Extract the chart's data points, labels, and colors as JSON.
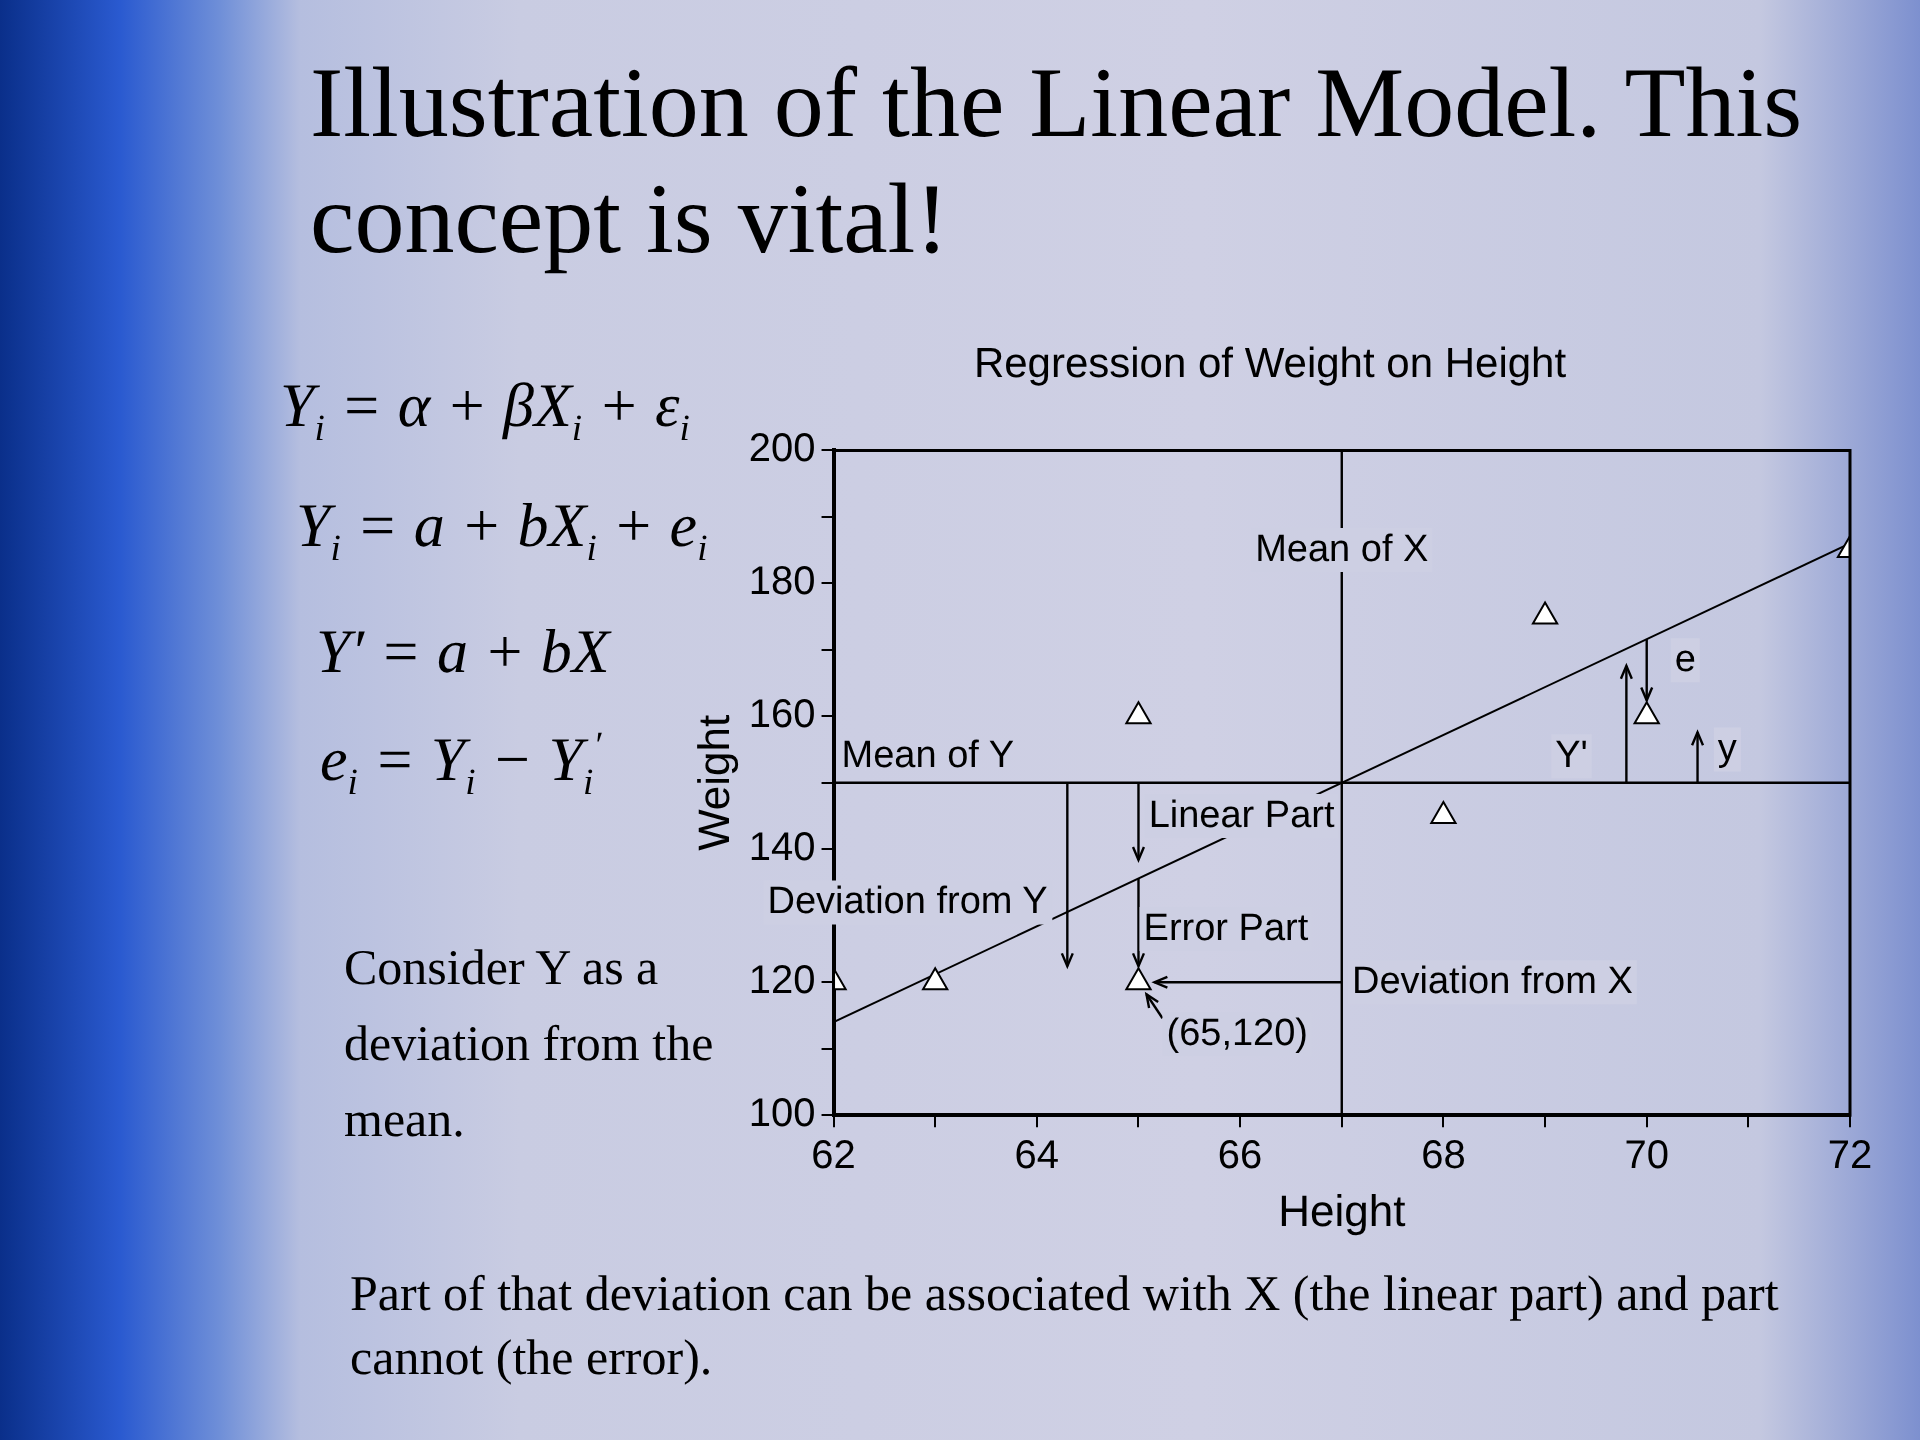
{
  "chart_data": {
    "type": "scatter",
    "title": "Illustration of the Linear Model. This concept is vital!",
    "subtitle": "Regression of Weight on Height",
    "xlabel": "Height",
    "ylabel": "Weight",
    "xlim": [
      62,
      72
    ],
    "xticks": [
      62,
      {
        "value": 63,
        "label": null
      },
      64,
      {
        "value": 65,
        "label": null
      },
      66,
      {
        "value": 67,
        "label": null
      },
      68,
      {
        "value": 69,
        "label": null
      },
      70,
      {
        "value": 71,
        "label": null
      },
      72
    ],
    "ylim": [
      100,
      200
    ],
    "yticks": [
      100,
      {
        "value": 110,
        "label": null
      },
      120,
      {
        "value": 130,
        "label": null
      },
      140,
      {
        "value": 150,
        "label": null
      },
      160,
      {
        "value": 170,
        "label": null
      },
      180,
      {
        "value": 190,
        "label": null
      },
      200
    ],
    "grid": false,
    "legend": false,
    "marker": "triangle",
    "series": [
      {
        "type": "scatter",
        "color": "#ffffff",
        "x": [
          62,
          63,
          65,
          65,
          68,
          69,
          70,
          72
        ],
        "values": [
          120,
          120,
          160,
          120,
          145,
          175,
          160,
          185
        ]
      },
      {
        "type": "line",
        "color": "#000000",
        "marker": "none",
        "x": [
          62,
          72
        ],
        "values": [
          114,
          186
        ]
      }
    ],
    "ref_lines": [
      {
        "axis": "x",
        "value": 67,
        "label": "Mean of X",
        "color": "#000000"
      },
      {
        "axis": "y",
        "value": 150,
        "label": "Mean of Y",
        "color": "#000000"
      }
    ],
    "annotations": [
      "Y$_{i}$ = α + βX$_{i}$ + ε$_{i}$",
      "Y$_{i}$ = a + bX$_{i}$ + e$_{i}$",
      "Y′ = a + bX",
      "e$_{i}$ = Y$_{i}$ − Y$_{i}$$^{′}$",
      "Consider Y as a deviation from the mean.",
      "Part of that deviation can be associated with X (the linear part) and part cannot (the error).",
      {
        "text": "(65,120)",
        "x": 65,
        "y": 120
      },
      {
        "text": "e",
        "x": 70,
        "y": 160
      },
      {
        "text": "Linear Part",
        "x": 65,
        "y": 136
      },
      {
        "text": "Error Part",
        "x": 65,
        "y": 120
      },
      {
        "text": "Deviation from Y",
        "x": 64.3,
        "y": 150
      },
      {
        "text": "Deviation from X",
        "x": 67,
        "y": 120
      },
      {
        "text": "Y'",
        "x": 69.8,
        "y": 170
      },
      {
        "text": "y",
        "x": 70.5,
        "y": 150
      }
    ]
  }
}
